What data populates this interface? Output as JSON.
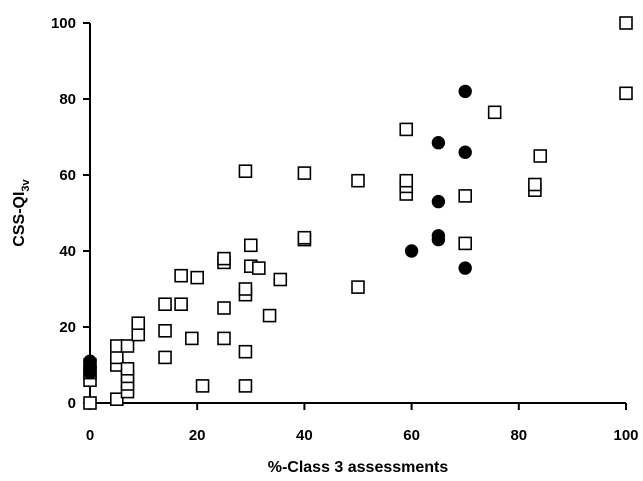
{
  "chart_data": {
    "type": "scatter",
    "xlabel": "%-Class 3 assessments",
    "ylabel_main": "CSS-QI",
    "ylabel_sub": "3v",
    "xlim": [
      0,
      100
    ],
    "ylim": [
      0,
      100
    ],
    "xticks": [
      0,
      20,
      40,
      60,
      80,
      100
    ],
    "yticks": [
      0,
      20,
      40,
      60,
      80,
      100
    ],
    "grid": false,
    "series": [
      {
        "marker": "open-square",
        "points": [
          [
            0,
            0
          ],
          [
            0,
            6
          ],
          [
            0,
            8
          ],
          [
            0,
            10
          ],
          [
            5,
            1
          ],
          [
            5,
            10
          ],
          [
            5,
            12
          ],
          [
            5,
            15
          ],
          [
            7,
            3
          ],
          [
            7,
            5
          ],
          [
            7,
            7
          ],
          [
            7,
            9
          ],
          [
            7,
            15
          ],
          [
            9,
            18
          ],
          [
            9,
            21
          ],
          [
            14,
            12
          ],
          [
            14,
            19
          ],
          [
            14,
            26
          ],
          [
            17,
            26
          ],
          [
            17,
            33.5
          ],
          [
            19,
            17
          ],
          [
            20,
            33
          ],
          [
            21,
            4.5
          ],
          [
            25,
            17
          ],
          [
            25,
            25
          ],
          [
            25,
            37
          ],
          [
            25,
            38
          ],
          [
            29,
            4.5
          ],
          [
            29,
            13.5
          ],
          [
            29,
            28.5
          ],
          [
            29,
            30
          ],
          [
            29,
            61
          ],
          [
            30,
            36
          ],
          [
            30,
            41.5
          ],
          [
            31.5,
            35.5
          ],
          [
            33.5,
            23
          ],
          [
            35.5,
            32.5
          ],
          [
            40,
            43
          ],
          [
            40,
            43.5
          ],
          [
            40,
            60.5
          ],
          [
            50,
            30.5
          ],
          [
            50,
            58.5
          ],
          [
            59,
            55
          ],
          [
            59,
            57
          ],
          [
            59,
            58.5
          ],
          [
            59,
            72
          ],
          [
            70,
            42
          ],
          [
            70,
            54.5
          ],
          [
            75.5,
            76.5
          ],
          [
            83,
            56
          ],
          [
            83,
            57.5
          ],
          [
            84,
            65
          ],
          [
            100,
            81.5
          ],
          [
            100,
            100
          ]
        ]
      },
      {
        "marker": "filled-circle",
        "points": [
          [
            0,
            8
          ],
          [
            0,
            9.5
          ],
          [
            0,
            11
          ],
          [
            60,
            40
          ],
          [
            65,
            43
          ],
          [
            65,
            44
          ],
          [
            65,
            53
          ],
          [
            65,
            68.5
          ],
          [
            70,
            35.5
          ],
          [
            70,
            66
          ],
          [
            70,
            82
          ]
        ]
      }
    ]
  }
}
